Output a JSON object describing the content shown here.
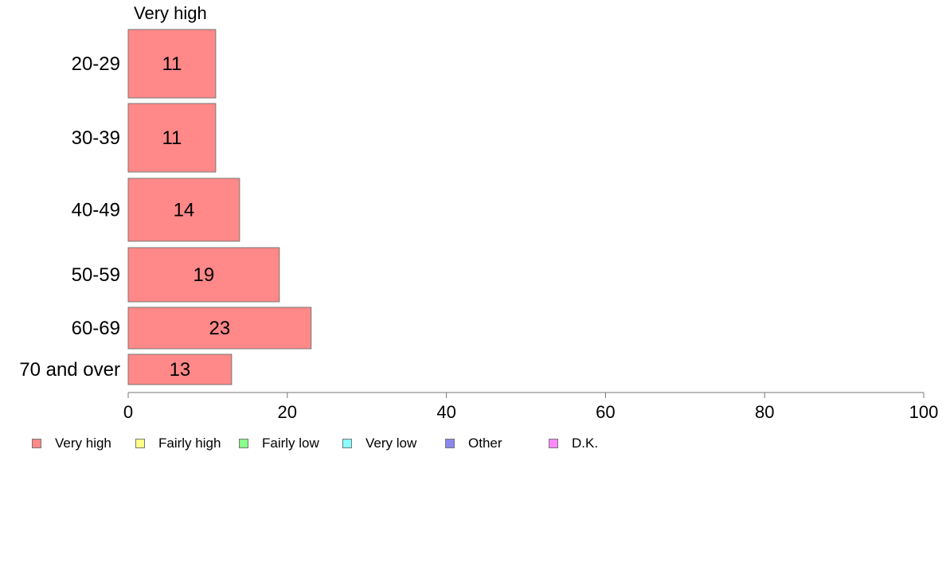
{
  "chart_data": {
    "type": "bar",
    "orientation": "horizontal",
    "panel_title": "Very high",
    "categories": [
      "20-29",
      "30-39",
      "40-49",
      "50-59",
      "60-69",
      "70 and over"
    ],
    "series": [
      {
        "name": "Very high",
        "values": [
          11,
          11,
          14,
          19,
          23,
          13
        ],
        "color": "#ff8888"
      }
    ],
    "data_labels": [
      "11",
      "11",
      "14",
      "19",
      "23",
      "13"
    ],
    "xlim": [
      0,
      100
    ],
    "x_ticks": [
      0,
      20,
      40,
      60,
      80,
      100
    ],
    "x_tick_labels": [
      "0",
      "20",
      "40",
      "60",
      "80",
      "100"
    ],
    "grid": false,
    "legend_position": "bottom",
    "legend": [
      {
        "label": "Very high",
        "color": "#ff8888"
      },
      {
        "label": "Fairly high",
        "color": "#ffff88"
      },
      {
        "label": "Fairly low",
        "color": "#88ff88"
      },
      {
        "label": "Very low",
        "color": "#88ffff"
      },
      {
        "label": "Other",
        "color": "#8888ee"
      },
      {
        "label": "D.K.",
        "color": "#ff88ff"
      }
    ]
  }
}
